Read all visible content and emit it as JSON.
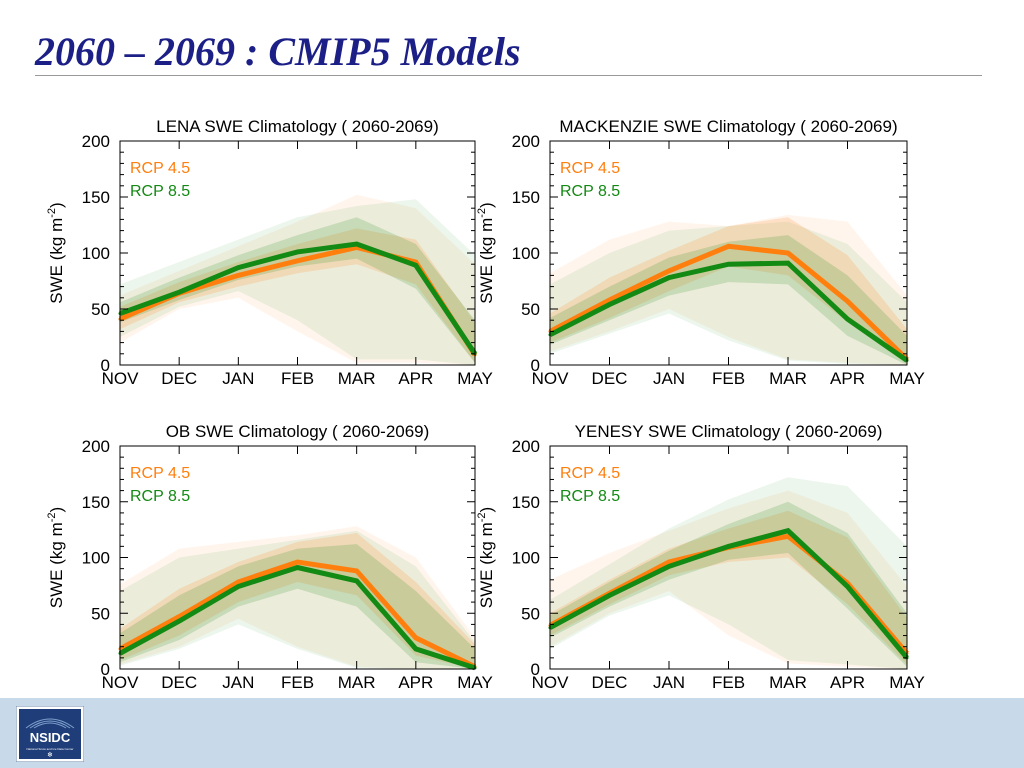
{
  "slide": {
    "title": "2060 – 2069 : CMIP5 Models"
  },
  "logo": {
    "text": "NSIDC",
    "subtext": "National Snow and Ice Data Center"
  },
  "colors": {
    "title": "#1b1f86",
    "rcp45": "#ff7f0e",
    "rcp85": "#138a13",
    "footer": "#c8daea"
  },
  "chart_data": [
    {
      "type": "line",
      "title": "LENA SWE Climatology ( 2060-2069)",
      "xlabel": "",
      "ylabel": "SWE (kg m-2)",
      "ylabel_main": "SWE (kg m",
      "ylabel_sup": "-2",
      "ylabel_close": ")",
      "categories": [
        "NOV",
        "DEC",
        "JAN",
        "FEB",
        "MAR",
        "APR",
        "MAY"
      ],
      "yticks": [
        0,
        50,
        100,
        150,
        200
      ],
      "ylim": [
        0,
        200
      ],
      "series": [
        {
          "name": "RCP 4.5",
          "color": "#ff7f0e",
          "values": [
            41,
            64,
            80,
            93,
            105,
            92,
            9
          ],
          "band_inner": {
            "lo": [
              32,
              56,
              70,
              82,
              90,
              72,
              2
            ],
            "hi": [
              52,
              74,
              92,
              108,
              122,
              112,
              38
            ]
          },
          "band_outer": {
            "lo": [
              20,
              50,
              60,
              30,
              2,
              2,
              0
            ],
            "hi": [
              62,
              84,
              106,
              128,
              152,
              140,
              90
            ]
          }
        },
        {
          "name": "RCP 8.5",
          "color": "#138a13",
          "values": [
            46,
            65,
            87,
            101,
            108,
            89,
            10
          ],
          "band_inner": {
            "lo": [
              38,
              58,
              76,
              88,
              95,
              68,
              2
            ],
            "hi": [
              56,
              78,
              98,
              116,
              132,
              108,
              40
            ]
          },
          "band_outer": {
            "lo": [
              25,
              52,
              66,
              40,
              5,
              5,
              0
            ],
            "hi": [
              72,
              92,
              112,
              132,
              142,
              148,
              98
            ]
          }
        }
      ]
    },
    {
      "type": "line",
      "title": "MACKENZIE SWE Climatology ( 2060-2069)",
      "xlabel": "",
      "ylabel": "SWE (kg m-2)",
      "ylabel_main": "SWE (kg m",
      "ylabel_sup": "-2",
      "ylabel_close": ")",
      "categories": [
        "NOV",
        "DEC",
        "JAN",
        "FEB",
        "MAR",
        "APR",
        "MAY"
      ],
      "yticks": [
        0,
        50,
        100,
        150,
        200
      ],
      "ylim": [
        0,
        200
      ],
      "series": [
        {
          "name": "RCP 4.5",
          "color": "#ff7f0e",
          "values": [
            30,
            58,
            84,
            106,
            100,
            57,
            5
          ],
          "band_inner": {
            "lo": [
              20,
              42,
              66,
              88,
              80,
              38,
              1
            ],
            "hi": [
              46,
              78,
              102,
              124,
              132,
              98,
              32
            ]
          },
          "band_outer": {
            "lo": [
              12,
              30,
              50,
              25,
              5,
              2,
              0
            ],
            "hi": [
              82,
              112,
              128,
              124,
              134,
              128,
              62
            ]
          }
        },
        {
          "name": "RCP 8.5",
          "color": "#138a13",
          "values": [
            27,
            54,
            78,
            90,
            91,
            41,
            4
          ],
          "band_inner": {
            "lo": [
              18,
              40,
              62,
              74,
              72,
              26,
              0
            ],
            "hi": [
              42,
              70,
              96,
              110,
              116,
              80,
              26
            ]
          },
          "band_outer": {
            "lo": [
              10,
              28,
              46,
              22,
              4,
              1,
              0
            ],
            "hi": [
              72,
              100,
              120,
              124,
              128,
              108,
              56
            ]
          }
        }
      ]
    },
    {
      "type": "line",
      "title": "OB SWE Climatology ( 2060-2069)",
      "xlabel": "",
      "ylabel": "SWE (kg m-2)",
      "ylabel_main": "SWE (kg m",
      "ylabel_sup": "-2",
      "ylabel_close": ")",
      "categories": [
        "NOV",
        "DEC",
        "JAN",
        "FEB",
        "MAR",
        "APR",
        "MAY"
      ],
      "yticks": [
        0,
        50,
        100,
        150,
        200
      ],
      "ylim": [
        0,
        200
      ],
      "series": [
        {
          "name": "RCP 4.5",
          "color": "#ff7f0e",
          "values": [
            18,
            47,
            78,
            96,
            88,
            28,
            2
          ],
          "band_inner": {
            "lo": [
              8,
              30,
              60,
              78,
              66,
              12,
              0
            ],
            "hi": [
              36,
              72,
              96,
              114,
              122,
              78,
              22
            ]
          },
          "band_outer": {
            "lo": [
              4,
              20,
              45,
              20,
              2,
              0,
              0
            ],
            "hi": [
              76,
              108,
              114,
              120,
              128,
              100,
              28
            ]
          }
        },
        {
          "name": "RCP 8.5",
          "color": "#138a13",
          "values": [
            14,
            43,
            74,
            91,
            79,
            18,
            1
          ],
          "band_inner": {
            "lo": [
              6,
              26,
              56,
              72,
              56,
              6,
              0
            ],
            "hi": [
              32,
              66,
              92,
              108,
              112,
              70,
              18
            ]
          },
          "band_outer": {
            "lo": [
              3,
              18,
              40,
              18,
              1,
              0,
              0
            ],
            "hi": [
              70,
              100,
              108,
              116,
              124,
              92,
              24
            ]
          }
        }
      ]
    },
    {
      "type": "line",
      "title": "YENESY SWE Climatology ( 2060-2069)",
      "xlabel": "",
      "ylabel": "SWE (kg m-2)",
      "ylabel_main": "SWE (kg m",
      "ylabel_sup": "-2",
      "ylabel_close": ")",
      "categories": [
        "NOV",
        "DEC",
        "JAN",
        "FEB",
        "MAR",
        "APR",
        "MAY"
      ],
      "yticks": [
        0,
        50,
        100,
        150,
        200
      ],
      "ylim": [
        0,
        200
      ],
      "series": [
        {
          "name": "RCP 4.5",
          "color": "#ff7f0e",
          "values": [
            39,
            68,
            96,
            109,
            119,
            77,
            14
          ],
          "band_inner": {
            "lo": [
              30,
              58,
              84,
              96,
              100,
              58,
              4
            ],
            "hi": [
              50,
              80,
              108,
              126,
              142,
              118,
              46
            ]
          },
          "band_outer": {
            "lo": [
              20,
              50,
              70,
              30,
              5,
              2,
              0
            ],
            "hi": [
              80,
              104,
              124,
              144,
              160,
              140,
              74
            ]
          }
        },
        {
          "name": "RCP 8.5",
          "color": "#138a13",
          "values": [
            37,
            66,
            92,
            110,
            124,
            74,
            10
          ],
          "band_inner": {
            "lo": [
              28,
              56,
              80,
              98,
              104,
              54,
              2
            ],
            "hi": [
              48,
              78,
              106,
              130,
              150,
              122,
              50
            ]
          },
          "band_outer": {
            "lo": [
              18,
              48,
              66,
              40,
              8,
              4,
              0
            ],
            "hi": [
              62,
              94,
              126,
              152,
              172,
              164,
              110
            ]
          }
        }
      ]
    }
  ]
}
